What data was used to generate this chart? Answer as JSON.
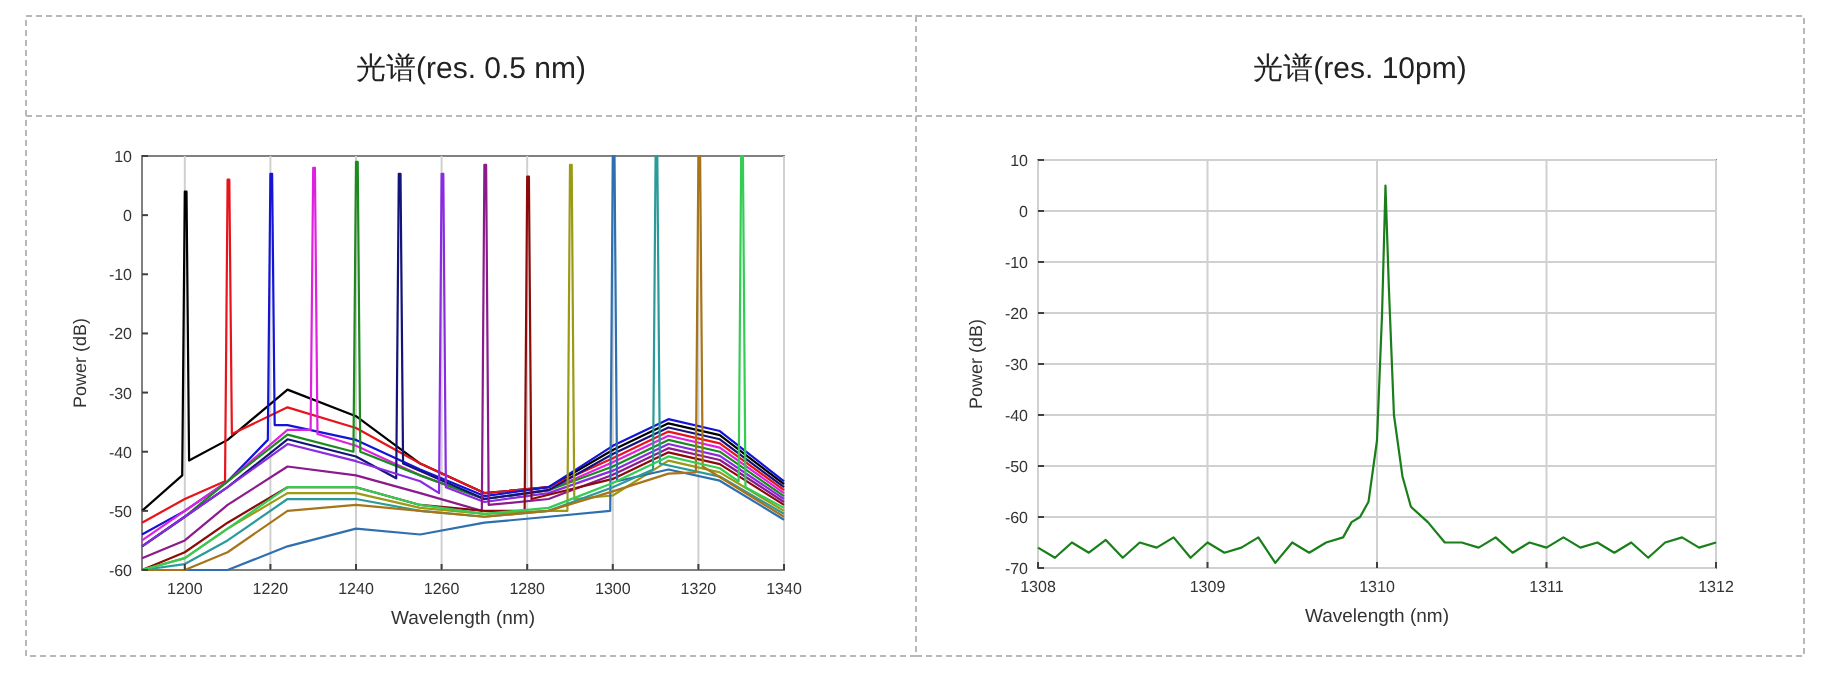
{
  "chart_data": [
    {
      "type": "line",
      "title": "光谱(res. 0.5 nm)",
      "xlabel": "Wavelength (nm)",
      "ylabel": "Power (dB)",
      "xlim": [
        1190,
        1340
      ],
      "ylim": [
        -60,
        10
      ],
      "xticks": [
        1200,
        1220,
        1240,
        1260,
        1280,
        1300,
        1320,
        1340
      ],
      "yticks": [
        -60,
        -50,
        -40,
        -30,
        -20,
        -10,
        0,
        10
      ],
      "grid": "x",
      "series": [
        {
          "color": "#000000",
          "x": [
            1190,
            1199.4,
            1200,
            1200.4,
            1201,
            1210,
            1224,
            1240,
            1255,
            1270,
            1285,
            1300,
            1313,
            1325,
            1340
          ],
          "values": [
            -50,
            -44,
            4,
            4,
            -41.5,
            -38,
            -29.5,
            -34,
            -42,
            -47,
            -46,
            -39.7,
            -35.2,
            -37.2,
            -45.5
          ]
        },
        {
          "color": "#e8141b",
          "x": [
            1190,
            1200,
            1209.4,
            1210,
            1210.4,
            1211,
            1224,
            1240,
            1255,
            1270,
            1285,
            1300,
            1313,
            1325,
            1340
          ],
          "values": [
            -52,
            -48,
            -45,
            6,
            6,
            -37,
            -32.5,
            -36,
            -42,
            -47,
            -46,
            -41.1,
            -36.6,
            -38.6,
            -46.5
          ]
        },
        {
          "color": "#1414d8",
          "x": [
            1190,
            1200,
            1210,
            1219.4,
            1220,
            1220.4,
            1221,
            1224,
            1240,
            1255,
            1270,
            1285,
            1300,
            1313,
            1325,
            1340
          ],
          "values": [
            -54,
            -50,
            -45,
            -38,
            7,
            7,
            -35.5,
            -35.5,
            -38,
            -43,
            -47.5,
            -46,
            -39,
            -34.5,
            -36.5,
            -45
          ]
        },
        {
          "color": "#e020e0",
          "x": [
            1190,
            1200,
            1210,
            1224,
            1229.4,
            1230,
            1230.4,
            1231,
            1240,
            1255,
            1270,
            1285,
            1300,
            1313,
            1325,
            1340
          ],
          "values": [
            -55,
            -50,
            -45,
            -36.3,
            -36.3,
            8,
            8,
            -37,
            -39,
            -44,
            -48,
            -46.5,
            -41.8,
            -37.3,
            -39.3,
            -47
          ]
        },
        {
          "color": "#1c8a1c",
          "x": [
            1190,
            1200,
            1210,
            1224,
            1239.4,
            1240,
            1240.4,
            1241,
            1255,
            1270,
            1285,
            1300,
            1313,
            1325,
            1340
          ],
          "values": [
            -56,
            -51,
            -45,
            -37.1,
            -40,
            9,
            9,
            -40,
            -44,
            -48,
            -46.5,
            -42.5,
            -38,
            -40,
            -47.5
          ]
        },
        {
          "color": "#141478",
          "x": [
            1190,
            1200,
            1210,
            1224,
            1240,
            1249.4,
            1250,
            1250.4,
            1251,
            1270,
            1285,
            1300,
            1313,
            1325,
            1340
          ],
          "values": [
            -56,
            -51,
            -46,
            -37.9,
            -40.8,
            -44.5,
            7,
            7,
            -42,
            -48,
            -46.5,
            -40.4,
            -35.9,
            -37.9,
            -46
          ]
        },
        {
          "color": "#8a2be2",
          "x": [
            1190,
            1200,
            1210,
            1224,
            1240,
            1255,
            1259.4,
            1260,
            1260.4,
            1261,
            1270,
            1285,
            1300,
            1313,
            1325,
            1340
          ],
          "values": [
            -56,
            -51,
            -46,
            -38.7,
            -41.6,
            -45,
            -47,
            7,
            7,
            -46,
            -48.5,
            -47,
            -43.2,
            -38.7,
            -40.7,
            -48
          ]
        },
        {
          "color": "#8b1a8b",
          "x": [
            1190,
            1200,
            1210,
            1224,
            1240,
            1255,
            1269.4,
            1270,
            1270.4,
            1271,
            1285,
            1300,
            1313,
            1325,
            1340
          ],
          "values": [
            -58,
            -55,
            -49,
            -42.5,
            -44,
            -47,
            -50,
            8.5,
            8.5,
            -49,
            -48,
            -43.9,
            -39.4,
            -41.4,
            -48.5
          ]
        },
        {
          "color": "#8b0a0a",
          "x": [
            1190,
            1200,
            1210,
            1224,
            1240,
            1255,
            1270,
            1279.4,
            1280,
            1280.4,
            1281,
            1300,
            1313,
            1325,
            1340
          ],
          "values": [
            -60,
            -57,
            -52,
            -46,
            -46,
            -49,
            -50,
            -50,
            6.5,
            6.5,
            -48,
            -44.6,
            -40.1,
            -42.1,
            -49
          ]
        },
        {
          "color": "#9a9a14",
          "x": [
            1190,
            1200,
            1210,
            1224,
            1240,
            1255,
            1270,
            1285,
            1289.4,
            1290,
            1290.4,
            1291,
            1300,
            1313,
            1325,
            1340
          ],
          "values": [
            -60,
            -58,
            -53,
            -47,
            -47,
            -49.5,
            -50.5,
            -50,
            -50,
            8.5,
            8.5,
            -48,
            -47.4,
            -41.5,
            -43.5,
            -50
          ]
        },
        {
          "color": "#2f6fb0",
          "x": [
            1190,
            1210,
            1224,
            1240,
            1255,
            1270,
            1285,
            1299.4,
            1300,
            1300.4,
            1301,
            1313,
            1325,
            1340
          ],
          "values": [
            -60,
            -60,
            -56,
            -53,
            -54,
            -52,
            -51,
            -50,
            10,
            10,
            -45,
            -43,
            -44.9,
            -51.5
          ]
        },
        {
          "color": "#2a9a9a",
          "x": [
            1190,
            1200,
            1210,
            1224,
            1240,
            1255,
            1270,
            1285,
            1300,
            1309.4,
            1310,
            1310.4,
            1311,
            1325,
            1340
          ],
          "values": [
            -60,
            -59,
            -55,
            -48,
            -48,
            -50,
            -51,
            -50,
            -46,
            -43,
            10,
            10,
            -42,
            -44.2,
            -50.5
          ]
        },
        {
          "color": "#a8741a",
          "x": [
            1190,
            1200,
            1210,
            1224,
            1240,
            1255,
            1270,
            1285,
            1300,
            1313,
            1319.4,
            1320,
            1320.4,
            1321,
            1340
          ],
          "values": [
            -60,
            -60,
            -57,
            -50,
            -49,
            -50,
            -51,
            -50,
            -46.7,
            -43.7,
            -43.5,
            10,
            10,
            -42.5,
            -51
          ]
        },
        {
          "color": "#33cc55",
          "x": [
            1190,
            1200,
            1210,
            1224,
            1240,
            1255,
            1270,
            1285,
            1300,
            1313,
            1325,
            1329.4,
            1330,
            1330.4,
            1331,
            1340
          ],
          "values": [
            -60,
            -58,
            -53,
            -46,
            -46,
            -49,
            -50.5,
            -49.5,
            -45.3,
            -40.8,
            -42.8,
            -45,
            10,
            10,
            -46,
            -49.5
          ]
        }
      ]
    },
    {
      "type": "line",
      "title": "光谱(res. 10pm)",
      "xlabel": "Wavelength (nm)",
      "ylabel": "Power (dB)",
      "xlim": [
        1308,
        1312
      ],
      "ylim": [
        -70,
        10
      ],
      "xticks": [
        1308,
        1309,
        1310,
        1311,
        1312
      ],
      "yticks": [
        -70,
        -60,
        -50,
        -40,
        -30,
        -20,
        -10,
        0,
        10
      ],
      "grid": true,
      "series": [
        {
          "color": "#1a7f1a",
          "x": [
            1308,
            1308.1,
            1308.2,
            1308.3,
            1308.4,
            1308.5,
            1308.6,
            1308.7,
            1308.8,
            1308.9,
            1309,
            1309.1,
            1309.2,
            1309.3,
            1309.4,
            1309.5,
            1309.6,
            1309.7,
            1309.8,
            1309.85,
            1309.9,
            1309.95,
            1310,
            1310.03,
            1310.05,
            1310.07,
            1310.1,
            1310.15,
            1310.2,
            1310.3,
            1310.4,
            1310.5,
            1310.6,
            1310.7,
            1310.8,
            1310.9,
            1311,
            1311.1,
            1311.2,
            1311.3,
            1311.4,
            1311.5,
            1311.6,
            1311.7,
            1311.8,
            1311.9,
            1312
          ],
          "values": [
            -66,
            -68,
            -65,
            -67,
            -64.5,
            -68,
            -65,
            -66,
            -64,
            -68,
            -65,
            -67,
            -66,
            -64,
            -69,
            -65,
            -67,
            -65,
            -64,
            -61,
            -60,
            -57,
            -45,
            -20,
            5,
            -15,
            -40,
            -52,
            -58,
            -61,
            -65,
            -65,
            -66,
            -64,
            -67,
            -65,
            -66,
            -64,
            -66,
            -65,
            -67,
            -65,
            -68,
            -65,
            -64,
            -66,
            -65
          ]
        }
      ]
    }
  ]
}
